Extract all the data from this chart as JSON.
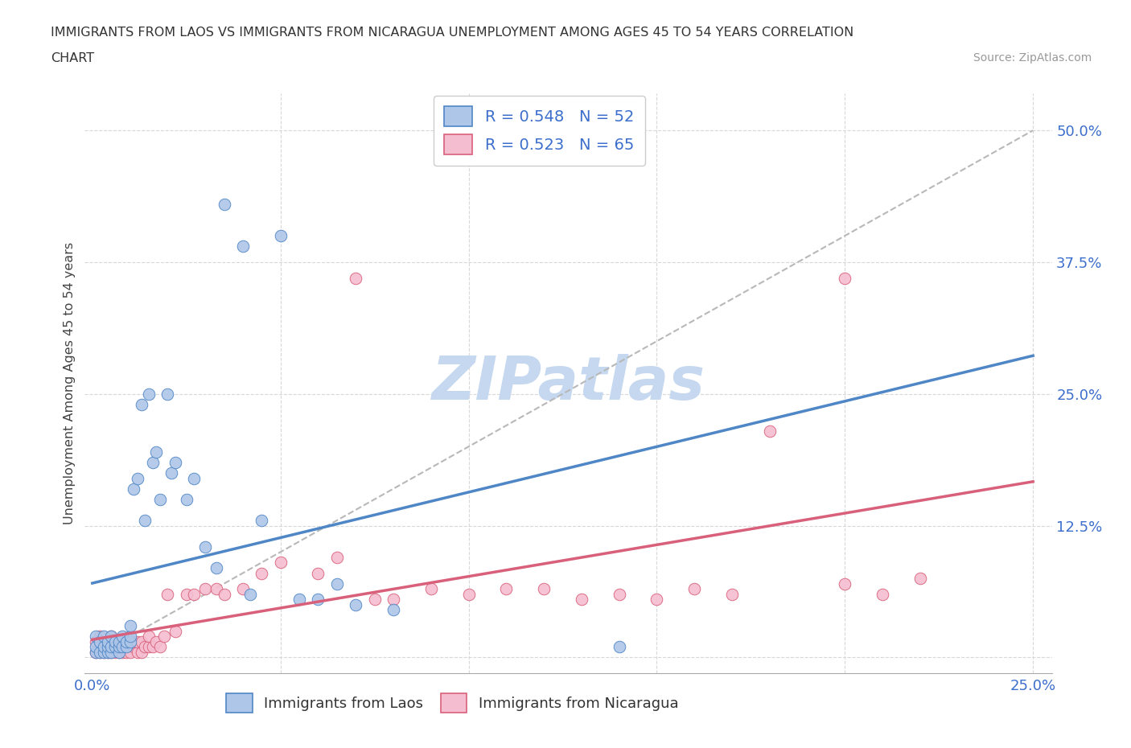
{
  "title_line1": "IMMIGRANTS FROM LAOS VS IMMIGRANTS FROM NICARAGUA UNEMPLOYMENT AMONG AGES 45 TO 54 YEARS CORRELATION",
  "title_line2": "CHART",
  "source": "Source: ZipAtlas.com",
  "ylabel": "Unemployment Among Ages 45 to 54 years",
  "xlim": [
    -0.002,
    0.255
  ],
  "ylim": [
    -0.015,
    0.535
  ],
  "ytick_right_vals": [
    0.0,
    0.125,
    0.25,
    0.375,
    0.5
  ],
  "ytick_right_labels": [
    "",
    "12.5%",
    "25.0%",
    "37.5%",
    "50.0%"
  ],
  "laos_R": 0.548,
  "laos_N": 52,
  "nicaragua_R": 0.523,
  "nicaragua_N": 65,
  "laos_color": "#aec6e8",
  "laos_edge_color": "#4f86c6",
  "nicaragua_color": "#f5bdd0",
  "nicaragua_edge_color": "#d9607a",
  "laos_line_color": "#4f86c6",
  "nicaragua_line_color": "#d9607a",
  "diagonal_color": "#b8b8b8",
  "watermark": "ZIPatlas",
  "watermark_color": "#c5d8f0",
  "grid_color": "#d8d8d8",
  "laos_line_x0": 0.0,
  "laos_line_y0": 0.01,
  "laos_line_x1": 0.155,
  "laos_line_y1": 0.335,
  "nicaragua_line_x0": 0.0,
  "nicaragua_line_y0": 0.01,
  "nicaragua_line_x1": 0.25,
  "nicaragua_line_y1": 0.245,
  "laos_x": [
    0.001,
    0.001,
    0.001,
    0.002,
    0.002,
    0.003,
    0.003,
    0.003,
    0.004,
    0.004,
    0.004,
    0.005,
    0.005,
    0.005,
    0.006,
    0.006,
    0.007,
    0.007,
    0.007,
    0.008,
    0.008,
    0.009,
    0.009,
    0.01,
    0.01,
    0.01,
    0.011,
    0.012,
    0.013,
    0.014,
    0.015,
    0.016,
    0.017,
    0.018,
    0.02,
    0.021,
    0.022,
    0.025,
    0.027,
    0.03,
    0.033,
    0.035,
    0.04,
    0.042,
    0.045,
    0.05,
    0.055,
    0.06,
    0.065,
    0.07,
    0.08,
    0.14
  ],
  "laos_y": [
    0.005,
    0.01,
    0.02,
    0.005,
    0.015,
    0.005,
    0.01,
    0.02,
    0.005,
    0.01,
    0.015,
    0.005,
    0.01,
    0.02,
    0.01,
    0.015,
    0.005,
    0.01,
    0.015,
    0.01,
    0.02,
    0.01,
    0.015,
    0.015,
    0.02,
    0.03,
    0.16,
    0.17,
    0.24,
    0.13,
    0.25,
    0.185,
    0.195,
    0.15,
    0.25,
    0.175,
    0.185,
    0.15,
    0.17,
    0.105,
    0.085,
    0.43,
    0.39,
    0.06,
    0.13,
    0.4,
    0.055,
    0.055,
    0.07,
    0.05,
    0.045,
    0.01
  ],
  "nicaragua_x": [
    0.001,
    0.001,
    0.002,
    0.002,
    0.002,
    0.003,
    0.003,
    0.004,
    0.004,
    0.005,
    0.005,
    0.005,
    0.006,
    0.006,
    0.006,
    0.007,
    0.007,
    0.008,
    0.008,
    0.009,
    0.009,
    0.01,
    0.01,
    0.011,
    0.011,
    0.012,
    0.012,
    0.013,
    0.013,
    0.014,
    0.015,
    0.015,
    0.016,
    0.017,
    0.018,
    0.019,
    0.02,
    0.022,
    0.025,
    0.027,
    0.03,
    0.033,
    0.035,
    0.04,
    0.045,
    0.05,
    0.06,
    0.065,
    0.07,
    0.075,
    0.08,
    0.09,
    0.1,
    0.11,
    0.12,
    0.13,
    0.14,
    0.15,
    0.16,
    0.17,
    0.18,
    0.2,
    0.21,
    0.22,
    0.2
  ],
  "nicaragua_y": [
    0.005,
    0.015,
    0.005,
    0.01,
    0.02,
    0.005,
    0.015,
    0.005,
    0.01,
    0.005,
    0.01,
    0.02,
    0.005,
    0.01,
    0.015,
    0.005,
    0.01,
    0.005,
    0.015,
    0.005,
    0.015,
    0.005,
    0.015,
    0.01,
    0.015,
    0.005,
    0.015,
    0.005,
    0.015,
    0.01,
    0.01,
    0.02,
    0.01,
    0.015,
    0.01,
    0.02,
    0.06,
    0.025,
    0.06,
    0.06,
    0.065,
    0.065,
    0.06,
    0.065,
    0.08,
    0.09,
    0.08,
    0.095,
    0.36,
    0.055,
    0.055,
    0.065,
    0.06,
    0.065,
    0.065,
    0.055,
    0.06,
    0.055,
    0.065,
    0.06,
    0.215,
    0.07,
    0.06,
    0.075,
    0.36
  ]
}
